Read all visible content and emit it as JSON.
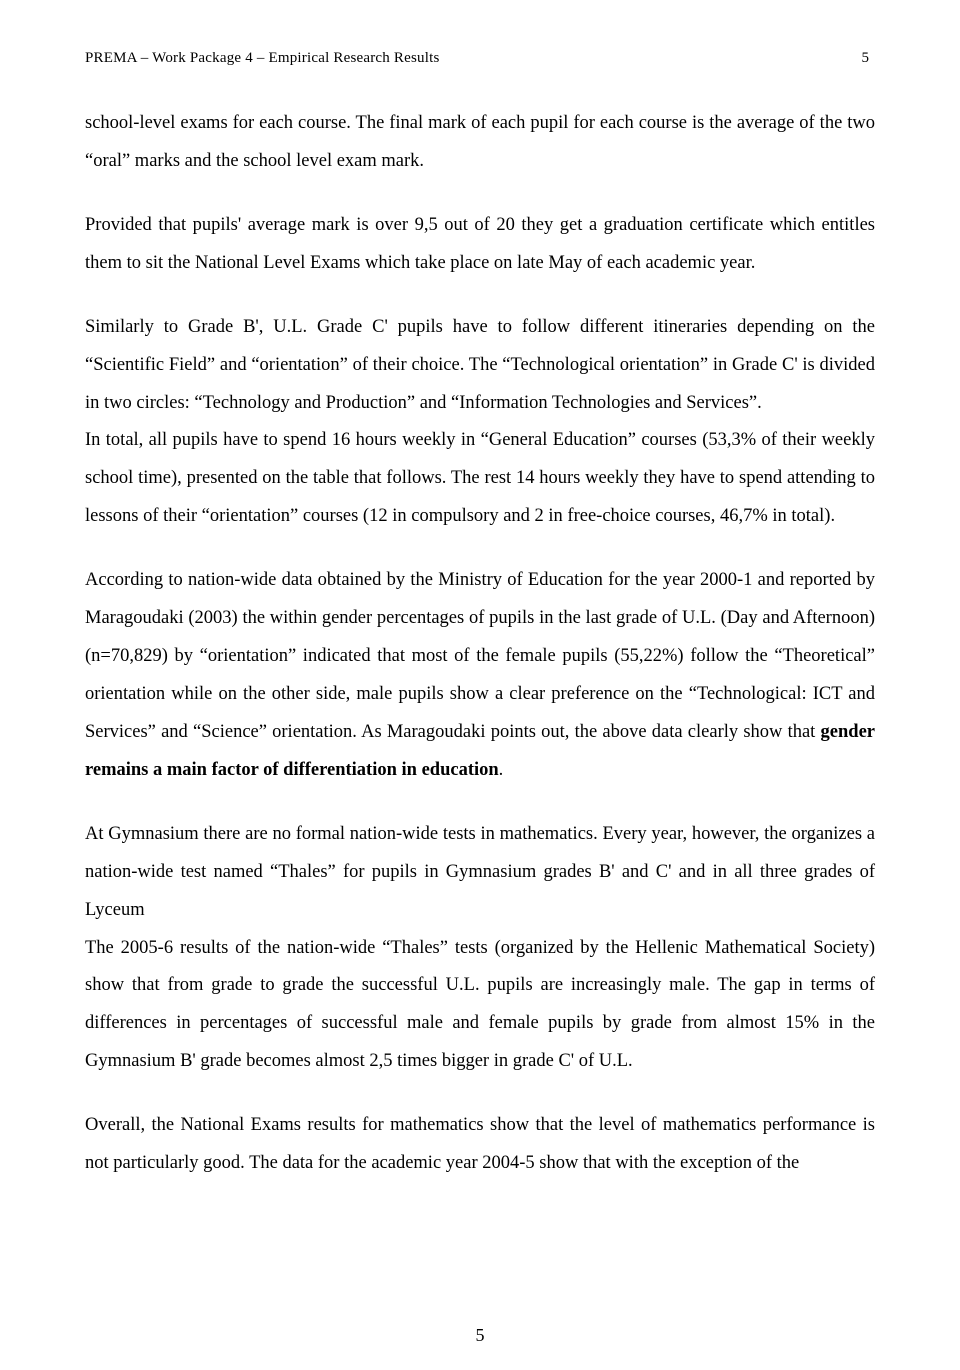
{
  "header": {
    "title": "PREMA – Work Package 4 – Empirical Research Results",
    "pagenum_top": "5"
  },
  "paragraphs": {
    "p1": "school-level exams for each course. The final mark of each pupil for each course is the average of the two “oral” marks and the school level exam mark.",
    "p2": "Provided that pupils' average mark is over 9,5 out of 20 they get a graduation certificate which entitles them to sit the National Level Exams which take place on late May of each academic year.",
    "p3": "Similarly to Grade B', U.L. Grade C' pupils have to follow different itineraries depending on the “Scientific Field” and “orientation” of their choice. The “Technological orientation” in Grade C' is divided in two circles: “Technology and Production” and “Information Technologies and Services”.",
    "p3b": "In total, all pupils have to spend 16 hours weekly in “General Education” courses (53,3% of their weekly school time), presented on the table that follows. The rest 14 hours weekly they have to spend attending to lessons of their “orientation” courses (12 in compulsory and 2 in free-choice courses, 46,7% in total).",
    "p4_pre": "According to nation-wide data obtained by the Ministry of Education for the year 2000-1 and reported by Maragoudaki (2003) the within gender percentages of pupils in the last grade of U.L. (Day and Afternoon) (n=70,829) by “orientation” indicated that most of the female pupils (55,22%) follow the “Theoretical” orientation while on the other side, male pupils show a clear preference on the “Technological: ICT and Services” and “Science” orientation. As Maragoudaki points out, the above data clearly show that ",
    "p4_bold": "gender remains a main factor of differentiation in education",
    "p4_post": ".",
    "p5": "At Gymnasium there are no formal nation-wide tests in mathematics. Every year, however, the organizes a nation-wide test named “Thales” for pupils in Gymnasium grades B' and C' and in all three grades of Lyceum",
    "p5b": "The 2005-6 results of the nation-wide “Thales” tests (organized by the Hellenic Mathematical Society) show that from grade to grade the successful U.L. pupils are increasingly male. The gap in terms of differences in percentages of successful male and female pupils by grade from almost 15% in the Gymnasium B' grade becomes almost 2,5 times bigger in grade C' of U.L.",
    "p6": "Overall, the National Exams results for mathematics show that the level of mathematics performance is not particularly good. The data for the academic year 2004-5 show that with the exception of the"
  },
  "footer": {
    "pagenum_bottom": "5"
  }
}
